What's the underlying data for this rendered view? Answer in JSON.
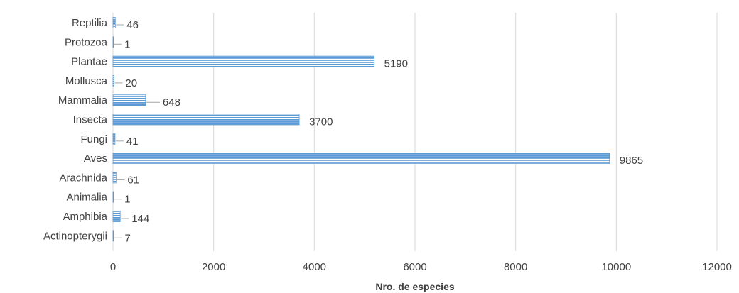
{
  "chart_data": {
    "type": "bar",
    "orientation": "horizontal",
    "categories": [
      "Reptilia",
      "Protozoa",
      "Plantae",
      "Mollusca",
      "Mammalia",
      "Insecta",
      "Fungi",
      "Aves",
      "Arachnida",
      "Animalia",
      "Amphibia",
      "Actinopterygii"
    ],
    "values": [
      46,
      1,
      5190,
      20,
      648,
      3700,
      41,
      9865,
      61,
      1,
      144,
      7
    ],
    "xlabel": "Nro. de especies",
    "ylabel": "",
    "xlim": [
      0,
      12000
    ],
    "xticks": [
      0,
      2000,
      4000,
      6000,
      8000,
      10000,
      12000
    ],
    "grid": true,
    "bar_color": "#5b9bd5",
    "data_labels": true
  }
}
